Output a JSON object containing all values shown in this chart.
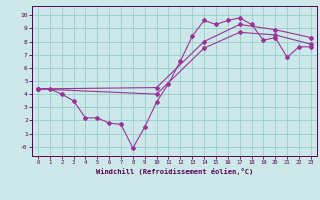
{
  "xlabel": "Windchill (Refroidissement éolien,°C)",
  "bg_color": "#cce8e8",
  "grid_color": "#99cccc",
  "line_color": "#993399",
  "xlim": [
    -0.5,
    23.5
  ],
  "ylim": [
    -0.7,
    10.7
  ],
  "xticks": [
    0,
    1,
    2,
    3,
    4,
    5,
    6,
    7,
    8,
    9,
    10,
    11,
    12,
    13,
    14,
    15,
    16,
    17,
    18,
    19,
    20,
    21,
    22,
    23
  ],
  "yticks": [
    0,
    1,
    2,
    3,
    4,
    5,
    6,
    7,
    8,
    9,
    10
  ],
  "ytick_labels": [
    "-0",
    "1",
    "2",
    "3",
    "4",
    "5",
    "6",
    "7",
    "8",
    "9",
    "10"
  ],
  "line1_x": [
    0,
    1,
    2,
    3,
    4,
    5,
    6,
    7,
    8,
    9,
    10,
    11,
    12,
    13,
    14,
    15,
    16,
    17,
    18,
    19,
    20,
    21,
    22,
    23
  ],
  "line1_y": [
    4.4,
    4.4,
    4.0,
    3.5,
    2.2,
    2.2,
    1.8,
    1.7,
    -0.1,
    1.5,
    3.4,
    4.8,
    6.5,
    8.4,
    9.6,
    9.3,
    9.6,
    9.8,
    9.3,
    8.1,
    8.3,
    6.8,
    7.6,
    7.6
  ],
  "line2_x": [
    0,
    10,
    14,
    17,
    20,
    23
  ],
  "line2_y": [
    4.4,
    4.0,
    7.5,
    8.7,
    8.5,
    7.8
  ],
  "line3_x": [
    0,
    10,
    14,
    17,
    20,
    23
  ],
  "line3_y": [
    4.4,
    4.5,
    8.0,
    9.3,
    8.9,
    8.3
  ]
}
